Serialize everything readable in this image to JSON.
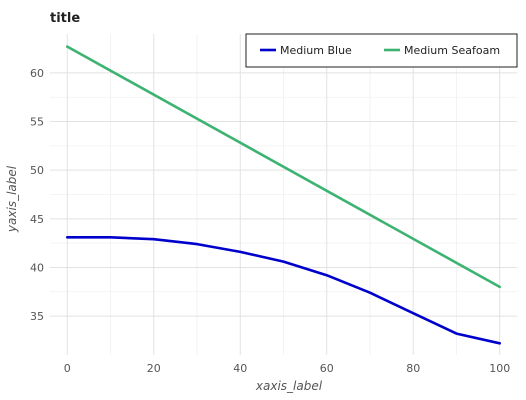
{
  "chart_data": {
    "type": "line",
    "title": "title",
    "xlabel": "xaxis_label",
    "ylabel": "yaxis_label",
    "xlim": [
      -4,
      104
    ],
    "ylim": [
      31,
      64
    ],
    "x_ticks": [
      0,
      20,
      40,
      60,
      80,
      100
    ],
    "y_ticks": [
      35,
      40,
      45,
      50,
      55,
      60
    ],
    "grid": true,
    "legend_position": "top-right",
    "series": [
      {
        "name": "Medium Blue",
        "color": "#0000CD",
        "x": [
          0,
          10,
          20,
          30,
          40,
          50,
          60,
          70,
          80,
          90,
          100
        ],
        "y": [
          43.1,
          43.1,
          42.9,
          42.4,
          41.6,
          40.6,
          39.2,
          37.4,
          35.3,
          33.2,
          32.2
        ]
      },
      {
        "name": "Medium Seafoam",
        "color": "#3CB371",
        "x": [
          0,
          100
        ],
        "y": [
          62.7,
          38.0
        ]
      }
    ]
  }
}
